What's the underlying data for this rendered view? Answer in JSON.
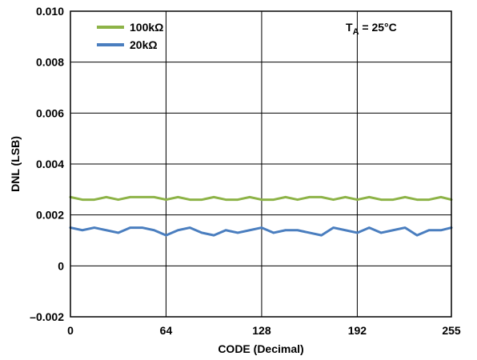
{
  "chart_data": {
    "type": "line",
    "title": "",
    "xlabel": "CODE (Decimal)",
    "ylabel": "DNL (LSB)",
    "xlim": [
      0,
      255
    ],
    "ylim": [
      -0.002,
      0.01
    ],
    "grid": true,
    "legend": "top-left",
    "annotation": {
      "main": "T",
      "sub": "A",
      "rest": " = 25°C"
    },
    "xticks": [
      {
        "value": 0,
        "label": "0"
      },
      {
        "value": 64,
        "label": "64"
      },
      {
        "value": 128,
        "label": "128"
      },
      {
        "value": 192,
        "label": "192"
      },
      {
        "value": 255,
        "label": "255"
      }
    ],
    "yticks": [
      {
        "value": -0.002,
        "label": "–0.002"
      },
      {
        "value": 0,
        "label": "0"
      },
      {
        "value": 0.002,
        "label": "0.002"
      },
      {
        "value": 0.004,
        "label": "0.004"
      },
      {
        "value": 0.006,
        "label": "0.006"
      },
      {
        "value": 0.008,
        "label": "0.008"
      },
      {
        "value": 0.01,
        "label": "0.010"
      }
    ],
    "series": [
      {
        "name": "100kΩ",
        "color": "#8db347",
        "points": [
          [
            0,
            0.0027
          ],
          [
            8,
            0.0026
          ],
          [
            16,
            0.0026
          ],
          [
            24,
            0.0027
          ],
          [
            32,
            0.0026
          ],
          [
            40,
            0.0027
          ],
          [
            48,
            0.0027
          ],
          [
            56,
            0.0027
          ],
          [
            64,
            0.0026
          ],
          [
            72,
            0.0027
          ],
          [
            80,
            0.0026
          ],
          [
            88,
            0.0026
          ],
          [
            96,
            0.0027
          ],
          [
            104,
            0.0026
          ],
          [
            112,
            0.0026
          ],
          [
            120,
            0.0027
          ],
          [
            128,
            0.0026
          ],
          [
            136,
            0.0026
          ],
          [
            144,
            0.0027
          ],
          [
            152,
            0.0026
          ],
          [
            160,
            0.0027
          ],
          [
            168,
            0.0027
          ],
          [
            176,
            0.0026
          ],
          [
            184,
            0.0027
          ],
          [
            192,
            0.0026
          ],
          [
            200,
            0.0027
          ],
          [
            208,
            0.0026
          ],
          [
            216,
            0.0026
          ],
          [
            224,
            0.0027
          ],
          [
            232,
            0.0026
          ],
          [
            240,
            0.0026
          ],
          [
            248,
            0.0027
          ],
          [
            255,
            0.0026
          ]
        ]
      },
      {
        "name": "20kΩ",
        "color": "#4a7ebf",
        "points": [
          [
            0,
            0.0015
          ],
          [
            8,
            0.0014
          ],
          [
            16,
            0.0015
          ],
          [
            24,
            0.0014
          ],
          [
            32,
            0.0013
          ],
          [
            40,
            0.0015
          ],
          [
            48,
            0.0015
          ],
          [
            56,
            0.0014
          ],
          [
            64,
            0.0012
          ],
          [
            72,
            0.0014
          ],
          [
            80,
            0.0015
          ],
          [
            88,
            0.0013
          ],
          [
            96,
            0.0012
          ],
          [
            104,
            0.0014
          ],
          [
            112,
            0.0013
          ],
          [
            120,
            0.0014
          ],
          [
            128,
            0.0015
          ],
          [
            136,
            0.0013
          ],
          [
            144,
            0.0014
          ],
          [
            152,
            0.0014
          ],
          [
            160,
            0.0013
          ],
          [
            168,
            0.0012
          ],
          [
            176,
            0.0015
          ],
          [
            184,
            0.0014
          ],
          [
            192,
            0.0013
          ],
          [
            200,
            0.0015
          ],
          [
            208,
            0.0013
          ],
          [
            216,
            0.0014
          ],
          [
            224,
            0.0015
          ],
          [
            232,
            0.0012
          ],
          [
            240,
            0.0014
          ],
          [
            248,
            0.0014
          ],
          [
            255,
            0.0015
          ]
        ]
      }
    ]
  }
}
